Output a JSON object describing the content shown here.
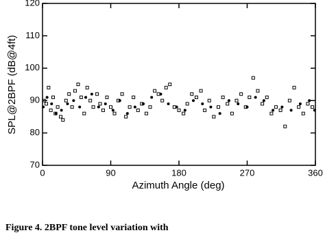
{
  "chart_data": {
    "type": "scatter",
    "xlabel": "Azimuth Angle (deg)",
    "ylabel": "SPL@2BPF (dB@4ft)",
    "caption": "Figure 4.  2BPF tone level variation with",
    "xlim": [
      0,
      360
    ],
    "xticks": [
      0,
      90,
      180,
      270,
      360
    ],
    "ylim": [
      70,
      120
    ],
    "yticks": [
      70,
      80,
      90,
      100,
      110,
      120
    ],
    "series": [
      {
        "marker": "square",
        "color": "#000000",
        "x": [
          2,
          5,
          8,
          11,
          14,
          17,
          20,
          24,
          27,
          31,
          35,
          39,
          43,
          47,
          51,
          55,
          59,
          63,
          67,
          72,
          76,
          80,
          85,
          90,
          95,
          100,
          105,
          110,
          115,
          120,
          126,
          131,
          137,
          142,
          148,
          153,
          158,
          163,
          168,
          174,
          180,
          186,
          191,
          197,
          203,
          209,
          214,
          220,
          226,
          232,
          238,
          244,
          250,
          256,
          262,
          268,
          273,
          278,
          284,
          290,
          296,
          302,
          308,
          314,
          320,
          326,
          332,
          338,
          344,
          350,
          356
        ],
        "values": [
          90,
          89,
          94,
          87,
          91,
          86,
          88,
          85,
          84,
          90,
          92,
          88,
          93,
          95,
          91,
          86,
          94,
          90,
          88,
          92,
          89,
          87,
          91,
          88,
          86,
          90,
          92,
          85,
          88,
          91,
          87,
          89,
          86,
          88,
          93,
          92,
          90,
          94,
          95,
          88,
          87,
          86,
          89,
          92,
          91,
          93,
          87,
          90,
          85,
          88,
          91,
          89,
          86,
          90,
          92,
          88,
          91,
          97,
          93,
          89,
          91,
          86,
          88,
          87,
          82,
          90,
          94,
          88,
          86,
          89,
          88
        ]
      },
      {
        "marker": "dot",
        "color": "#000000",
        "x": [
          1,
          6,
          12,
          18,
          25,
          33,
          41,
          49,
          57,
          65,
          74,
          83,
          93,
          102,
          112,
          122,
          133,
          144,
          156,
          166,
          177,
          188,
          199,
          211,
          222,
          234,
          246,
          258,
          270,
          281,
          292,
          304,
          316,
          328,
          340,
          352,
          359
        ],
        "values": [
          88,
          91,
          89,
          86,
          87,
          89,
          90,
          88,
          91,
          92,
          88,
          89,
          87,
          90,
          86,
          88,
          89,
          91,
          92,
          89,
          88,
          87,
          90,
          89,
          88,
          86,
          90,
          89,
          88,
          91,
          90,
          87,
          88,
          87,
          89,
          90,
          87
        ]
      }
    ]
  }
}
